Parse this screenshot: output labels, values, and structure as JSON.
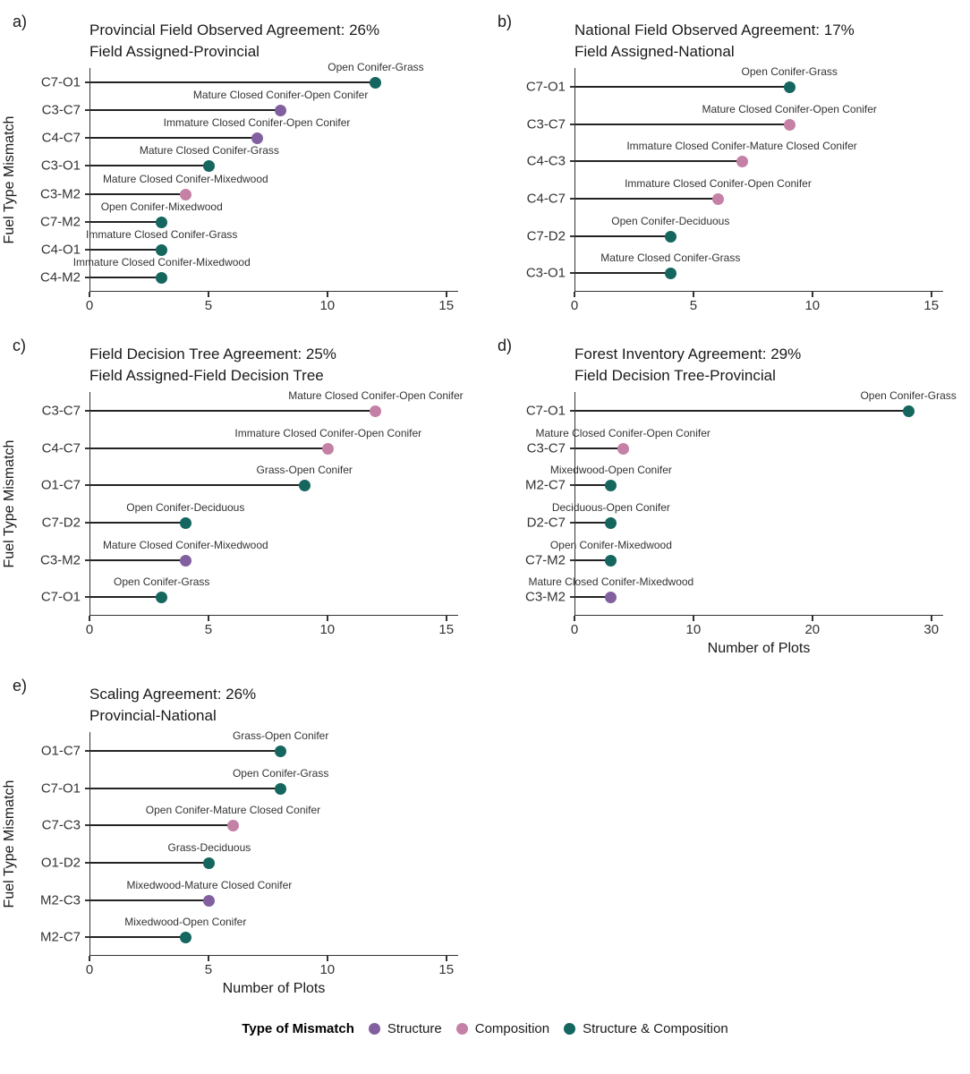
{
  "colors": {
    "structure": "#82609F",
    "composition": "#C481A5",
    "both": "#14665F",
    "axis": "#333333",
    "stem": "#222222"
  },
  "legend": {
    "title": "Type of Mismatch",
    "items": [
      {
        "label": "Structure",
        "type": "structure"
      },
      {
        "label": "Composition",
        "type": "composition"
      },
      {
        "label": "Structure & Composition",
        "type": "both"
      }
    ]
  },
  "chart_data": [
    {
      "id": "a",
      "type": "lollipop",
      "letter": "a)",
      "title": "Provincial Field Observed Agreement: 26%",
      "subtitle": "Field Assigned-Provincial",
      "ylabel": "Fuel Type Mismatch",
      "xlabel": "",
      "xticks": [
        0,
        5,
        10,
        15
      ],
      "xlim": [
        0,
        15.5
      ],
      "rows": [
        {
          "code": "C7-O1",
          "label": "Open Conifer-Grass",
          "value": 12,
          "type": "both"
        },
        {
          "code": "C3-C7",
          "label": "Mature Closed Conifer-Open Conifer",
          "value": 8,
          "type": "structure"
        },
        {
          "code": "C4-C7",
          "label": "Immature Closed Conifer-Open Conifer",
          "value": 7,
          "type": "structure"
        },
        {
          "code": "C3-O1",
          "label": "Mature Closed Conifer-Grass",
          "value": 5,
          "type": "both"
        },
        {
          "code": "C3-M2",
          "label": "Mature Closed Conifer-Mixedwood",
          "value": 4,
          "type": "composition"
        },
        {
          "code": "C7-M2",
          "label": "Open Conifer-Mixedwood",
          "value": 3,
          "type": "both"
        },
        {
          "code": "C4-O1",
          "label": "Immature Closed Conifer-Grass",
          "value": 3,
          "type": "both"
        },
        {
          "code": "C4-M2",
          "label": "Immature Closed Conifer-Mixedwood",
          "value": 3,
          "type": "both"
        }
      ]
    },
    {
      "id": "b",
      "type": "lollipop",
      "letter": "b)",
      "title": "National Field Observed Agreement: 17%",
      "subtitle": "Field Assigned-National",
      "ylabel": "",
      "xlabel": "",
      "xticks": [
        0,
        5,
        10,
        15
      ],
      "xlim": [
        0,
        15.5
      ],
      "rows": [
        {
          "code": "C7-O1",
          "label": "Open Conifer-Grass",
          "value": 9,
          "type": "both"
        },
        {
          "code": "C3-C7",
          "label": "Mature Closed Conifer-Open Conifer",
          "value": 9,
          "type": "composition"
        },
        {
          "code": "C4-C3",
          "label": "Immature Closed Conifer-Mature Closed Conifer",
          "value": 7,
          "type": "composition"
        },
        {
          "code": "C4-C7",
          "label": "Immature Closed Conifer-Open Conifer",
          "value": 6,
          "type": "composition"
        },
        {
          "code": "C7-D2",
          "label": "Open Conifer-Deciduous",
          "value": 4,
          "type": "both"
        },
        {
          "code": "C3-O1",
          "label": "Mature Closed Conifer-Grass",
          "value": 4,
          "type": "both"
        }
      ]
    },
    {
      "id": "c",
      "type": "lollipop",
      "letter": "c)",
      "title": "Field Decision Tree Agreement: 25%",
      "subtitle": "Field Assigned-Field Decision Tree",
      "ylabel": "Fuel Type Mismatch",
      "xlabel": "",
      "xticks": [
        0,
        5,
        10,
        15
      ],
      "xlim": [
        0,
        15.5
      ],
      "rows": [
        {
          "code": "C3-C7",
          "label": "Mature Closed Conifer-Open Conifer",
          "value": 12,
          "type": "composition"
        },
        {
          "code": "C4-C7",
          "label": "Immature Closed Conifer-Open Conifer",
          "value": 10,
          "type": "composition"
        },
        {
          "code": "O1-C7",
          "label": "Grass-Open Conifer",
          "value": 9,
          "type": "both"
        },
        {
          "code": "C7-D2",
          "label": "Open Conifer-Deciduous",
          "value": 4,
          "type": "both"
        },
        {
          "code": "C3-M2",
          "label": "Mature Closed Conifer-Mixedwood",
          "value": 4,
          "type": "structure"
        },
        {
          "code": "C7-O1",
          "label": "Open Conifer-Grass",
          "value": 3,
          "type": "both"
        }
      ]
    },
    {
      "id": "d",
      "type": "lollipop",
      "letter": "d)",
      "title": "Forest Inventory Agreement: 29%",
      "subtitle": "Field Decision Tree-Provincial",
      "ylabel": "",
      "xlabel": "Number of Plots",
      "xticks": [
        0,
        10,
        20,
        30
      ],
      "xlim": [
        0,
        31
      ],
      "rows": [
        {
          "code": "C7-O1",
          "label": "Open Conifer-Grass",
          "value": 28,
          "type": "both"
        },
        {
          "code": "C3-C7",
          "label": "Mature Closed Conifer-Open Conifer",
          "value": 4,
          "type": "composition"
        },
        {
          "code": "M2-C7",
          "label": "Mixedwood-Open Conifer",
          "value": 3,
          "type": "both"
        },
        {
          "code": "D2-C7",
          "label": "Deciduous-Open Conifer",
          "value": 3,
          "type": "both"
        },
        {
          "code": "C7-M2",
          "label": "Open Conifer-Mixedwood",
          "value": 3,
          "type": "both"
        },
        {
          "code": "C3-M2",
          "label": "Mature Closed Conifer-Mixedwood",
          "value": 3,
          "type": "structure"
        }
      ]
    },
    {
      "id": "e",
      "type": "lollipop",
      "letter": "e)",
      "title": "Scaling Agreement: 26%",
      "subtitle": "Provincial-National",
      "ylabel": "Fuel Type Mismatch",
      "xlabel": "Number of Plots",
      "xticks": [
        0,
        5,
        10,
        15
      ],
      "xlim": [
        0,
        15.5
      ],
      "rows": [
        {
          "code": "O1-C7",
          "label": "Grass-Open Conifer",
          "value": 8,
          "type": "both"
        },
        {
          "code": "C7-O1",
          "label": "Open Conifer-Grass",
          "value": 8,
          "type": "both"
        },
        {
          "code": "C7-C3",
          "label": "Open Conifer-Mature Closed Conifer",
          "value": 6,
          "type": "composition"
        },
        {
          "code": "O1-D2",
          "label": "Grass-Deciduous",
          "value": 5,
          "type": "both"
        },
        {
          "code": "M2-C3",
          "label": "Mixedwood-Mature Closed Conifer",
          "value": 5,
          "type": "structure"
        },
        {
          "code": "M2-C7",
          "label": "Mixedwood-Open Conifer",
          "value": 4,
          "type": "both"
        }
      ]
    }
  ]
}
